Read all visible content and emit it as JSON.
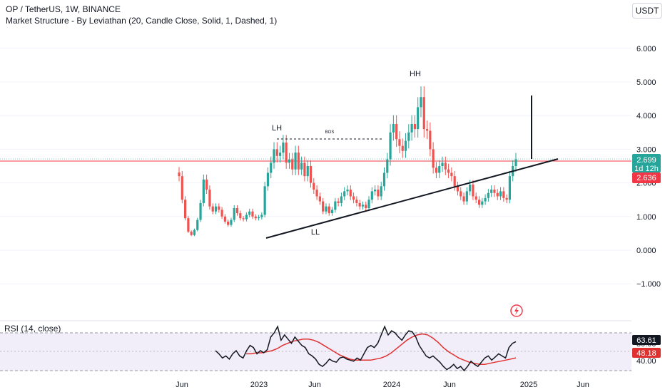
{
  "header": {
    "symbol_line": "OP / TetherUS, 1W, BINANCE",
    "indicator_line": "Market Structure - By Leviathan (20, Candle Close, Solid, 1, Dashed, 1)",
    "currency_button": "USDT"
  },
  "rsi": {
    "label": "RSI (14, close)",
    "ticks": [
      "80.00",
      "40.00"
    ],
    "value_label": "63.61",
    "ma_label": "48.18",
    "colors": {
      "rsi": "#131722",
      "ma": "#e03131",
      "band": "#7e57c2"
    }
  },
  "annotations": {
    "lh": "LH",
    "hh": "HH",
    "ll": "LL",
    "bos": "BOS"
  },
  "price_scale": {
    "ticks": [
      "6.000",
      "5.000",
      "4.000",
      "3.000",
      "2.000",
      "1.000",
      "0.000",
      "−1.000"
    ],
    "last_price": "2.699",
    "countdown": "1d 12h",
    "ref_price": "2.636"
  },
  "time_axis": [
    "Jun",
    "2023",
    "Jun",
    "2024",
    "Jun",
    "2025",
    "Jun"
  ],
  "chart_data": {
    "type": "candlestick",
    "title": "OP / TetherUS, 1W, BINANCE",
    "ylim": [
      -1.7,
      7.0
    ],
    "x_range": [
      "2022-06",
      "2025-06"
    ],
    "up_color": "#26a69a",
    "down_color": "#ef5350",
    "price_path": [
      2.2,
      1.5,
      0.95,
      0.55,
      0.45,
      0.6,
      0.9,
      1.4,
      2.1,
      1.8,
      1.3,
      1.15,
      1.3,
      1.2,
      1.0,
      0.85,
      0.75,
      0.9,
      1.25,
      1.1,
      0.95,
      0.92,
      1.05,
      1.15,
      1.0,
      0.95,
      0.98,
      1.05,
      1.9,
      2.3,
      2.6,
      3.0,
      2.8,
      2.9,
      3.2,
      2.6,
      2.7,
      2.4,
      2.9,
      2.4,
      2.6,
      2.2,
      2.5,
      2.0,
      1.8,
      1.6,
      1.45,
      1.15,
      1.3,
      1.1,
      1.2,
      1.45,
      1.4,
      1.6,
      1.75,
      1.8,
      1.6,
      1.5,
      1.4,
      1.3,
      1.35,
      1.25,
      1.5,
      1.75,
      1.8,
      1.6,
      1.9,
      2.3,
      2.7,
      3.5,
      3.75,
      3.3,
      3.1,
      2.95,
      3.25,
      3.5,
      3.75,
      3.6,
      4.25,
      4.55,
      3.6,
      3.55,
      3.0,
      2.45,
      2.3,
      2.5,
      2.6,
      2.4,
      2.3,
      2.2,
      1.9,
      1.75,
      1.6,
      1.45,
      1.75,
      1.95,
      1.6,
      1.5,
      1.35,
      1.45,
      1.55,
      1.7,
      1.8,
      1.7,
      1.6,
      1.75,
      1.55,
      1.5,
      2.2,
      2.5,
      2.7
    ],
    "series": [
      {
        "name": "OP / TetherUS",
        "last": 2.699
      }
    ],
    "horizontal_line": {
      "value": 2.636,
      "color": "#f23645"
    },
    "trendline": {
      "from": [
        "2022-12",
        0.35
      ],
      "to": [
        "2025-02",
        2.7
      ]
    },
    "bos_level": 3.3,
    "vertical_segment": {
      "x": "2024-12",
      "from": 2.7,
      "to": 4.55
    },
    "rsi_values": [
      55,
      52,
      48,
      50,
      47,
      52,
      55,
      50,
      48,
      55,
      60,
      58,
      52,
      55,
      53,
      56,
      68,
      72,
      78,
      65,
      70,
      66,
      62,
      68,
      64,
      60,
      58,
      52,
      50,
      47,
      42,
      40,
      43,
      47,
      45,
      44,
      48,
      49,
      47,
      46,
      45,
      48,
      46,
      52,
      58,
      60,
      58,
      62,
      70,
      78,
      70,
      74,
      72,
      68,
      65,
      70,
      74,
      73,
      68,
      60,
      55,
      50,
      48,
      50,
      47,
      44,
      40,
      37,
      39,
      42,
      38,
      40,
      36,
      40,
      45,
      42,
      40,
      44,
      48,
      50,
      46,
      49,
      52,
      50,
      48,
      58,
      62,
      63.61
    ],
    "rsi_ma_values": [
      52,
      52,
      53,
      53,
      54,
      55,
      57,
      60,
      62,
      64,
      65,
      66,
      66,
      65,
      63,
      60,
      57,
      54,
      51,
      49,
      47,
      46,
      46,
      46,
      46,
      47,
      48,
      50,
      53,
      57,
      61,
      65,
      68,
      70,
      71,
      70,
      67,
      63,
      58,
      54,
      51,
      48,
      46,
      44,
      43,
      42,
      42,
      43,
      44,
      45,
      46,
      47,
      48.18
    ]
  }
}
